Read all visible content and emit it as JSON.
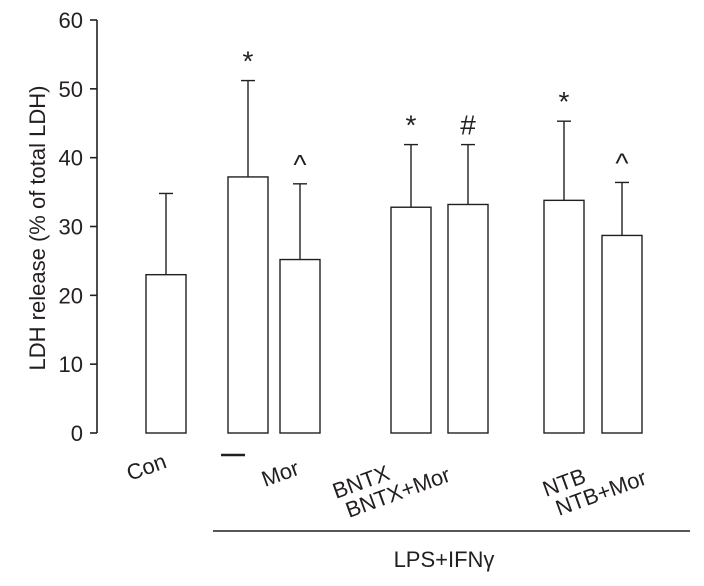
{
  "chart_data": {
    "type": "bar",
    "ylabel": "LDH release (% of total LDH)",
    "ylim": [
      0,
      60
    ],
    "yticks": [
      0,
      10,
      20,
      30,
      40,
      50,
      60
    ],
    "grid": false,
    "categories": [
      "Con",
      "—",
      "Mor",
      "BNTX",
      "BNTX+Mor",
      "NTB",
      "NTB+Mor"
    ],
    "values": [
      23.0,
      37.2,
      25.2,
      32.8,
      33.2,
      33.8,
      28.7
    ],
    "error_upper": [
      34.8,
      51.2,
      36.2,
      41.9,
      41.9,
      45.3,
      36.4
    ],
    "significance": [
      "",
      "*",
      "^",
      "*",
      "#",
      "*",
      "^"
    ],
    "group_label": "LPS+IFNγ"
  }
}
